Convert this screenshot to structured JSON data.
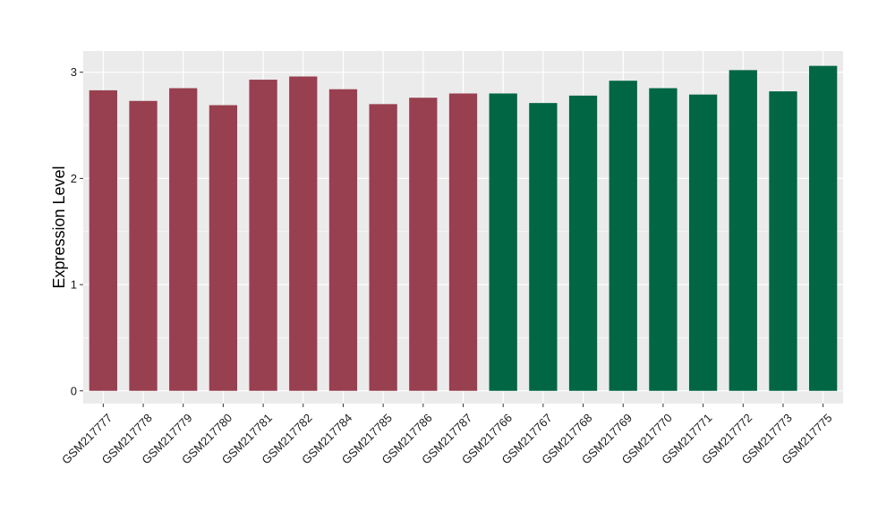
{
  "chart_data": {
    "type": "bar",
    "ylabel": "Expression Level",
    "xlabel": "",
    "ylim": [
      -0.12,
      3.2
    ],
    "yticks": [
      0,
      1,
      2,
      3
    ],
    "grid": true,
    "categories": [
      "GSM217777",
      "GSM217778",
      "GSM217779",
      "GSM217780",
      "GSM217781",
      "GSM217782",
      "GSM217784",
      "GSM217785",
      "GSM217786",
      "GSM217787",
      "GSM217766",
      "GSM217767",
      "GSM217768",
      "GSM217769",
      "GSM217770",
      "GSM217771",
      "GSM217772",
      "GSM217773",
      "GSM217775"
    ],
    "values": [
      2.83,
      2.73,
      2.85,
      2.69,
      2.93,
      2.96,
      2.84,
      2.7,
      2.76,
      2.8,
      2.8,
      2.71,
      2.78,
      2.92,
      2.85,
      2.79,
      3.02,
      2.82,
      3.06
    ],
    "bar_colors": [
      "#98404F",
      "#98404F",
      "#98404F",
      "#98404F",
      "#98404F",
      "#98404F",
      "#98404F",
      "#98404F",
      "#98404F",
      "#98404F",
      "#006644",
      "#006644",
      "#006644",
      "#006644",
      "#006644",
      "#006644",
      "#006644",
      "#006644",
      "#006644"
    ],
    "panel_background": "#EBEBEB",
    "gridline_color": "#FFFFFF"
  }
}
